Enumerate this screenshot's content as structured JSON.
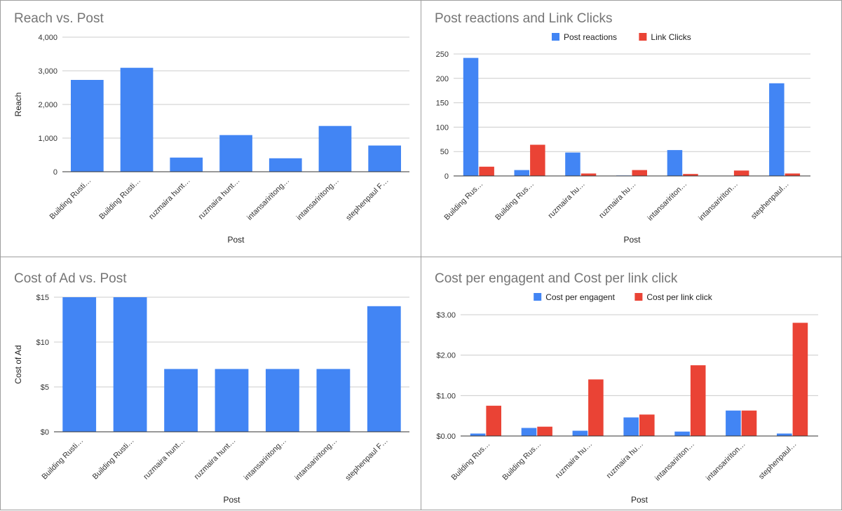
{
  "colors": {
    "blue": "#4285f4",
    "red": "#ea4335",
    "grid": "#cccccc",
    "baseline": "#333333"
  },
  "chart_data": [
    {
      "type": "bar",
      "title": "Reach vs. Post",
      "xlabel": "Post",
      "ylabel": "Reach",
      "ylim": [
        0,
        4000
      ],
      "yticks": [
        0,
        1000,
        2000,
        3000,
        4000
      ],
      "ytick_labels": [
        "0",
        "1,000",
        "2,000",
        "3,000",
        "4,000"
      ],
      "grid": true,
      "legend": "none",
      "categories": [
        "Building Rusti…",
        "Building Rusti…",
        "ruzmaira hunt…",
        "ruzmaira hunt…",
        "intansariritong…",
        "intansariritong…",
        "stephenpaul F…"
      ],
      "series": [
        {
          "values": [
            2730,
            3090,
            420,
            1090,
            400,
            1360,
            780
          ],
          "color": "#4285f4"
        }
      ]
    },
    {
      "type": "bar",
      "title": "Post reactions and Link Clicks",
      "xlabel": "Post",
      "ylabel": "",
      "ylim": [
        0,
        250
      ],
      "yticks": [
        0,
        50,
        100,
        150,
        200,
        250
      ],
      "ytick_labels": [
        "0",
        "50",
        "100",
        "150",
        "200",
        "250"
      ],
      "grid": true,
      "legend": "top",
      "categories": [
        "Building Rus…",
        "Building Rus…",
        "ruzmaira hu…",
        "ruzmaira hu…",
        "intansaririton…",
        "intansaririton…",
        "stephenpaul…"
      ],
      "series": [
        {
          "name": "Post reactions",
          "values": [
            242,
            12,
            48,
            1,
            53,
            0,
            190
          ],
          "color": "#4285f4"
        },
        {
          "name": "Link Clicks",
          "values": [
            19,
            64,
            5,
            12,
            4,
            11,
            5
          ],
          "color": "#ea4335"
        }
      ]
    },
    {
      "type": "bar",
      "title": "Cost of Ad vs. Post",
      "xlabel": "Post",
      "ylabel": "Cost of Ad",
      "ylim": [
        0,
        15
      ],
      "yticks": [
        0,
        5,
        10,
        15
      ],
      "ytick_labels": [
        "$0",
        "$5",
        "$10",
        "$15"
      ],
      "grid": true,
      "legend": "none",
      "categories": [
        "Building Rusti…",
        "Building Rusti…",
        "ruzmaira hunt…",
        "ruzmaira hunt…",
        "intansariritong…",
        "intansariritong…",
        "stephenpaul F…"
      ],
      "series": [
        {
          "values": [
            15,
            15,
            7,
            7,
            7,
            7,
            14
          ],
          "color": "#4285f4"
        }
      ]
    },
    {
      "type": "bar",
      "title": "Cost per engagent and Cost per link click",
      "xlabel": "Post",
      "ylabel": "",
      "ylim": [
        0,
        3
      ],
      "yticks": [
        0,
        1,
        2,
        3
      ],
      "ytick_labels": [
        "$0.00",
        "$1.00",
        "$2.00",
        "$3.00"
      ],
      "grid": true,
      "legend": "top",
      "categories": [
        "Building Rus…",
        "Building Rus…",
        "ruzmaira hu…",
        "ruzmaira hu…",
        "intansaririton…",
        "intansaririton…",
        "stephenpaul…"
      ],
      "series": [
        {
          "name": "Cost per engagent",
          "values": [
            0.06,
            0.2,
            0.13,
            0.46,
            0.11,
            0.63,
            0.06
          ],
          "color": "#4285f4"
        },
        {
          "name": "Cost per link click",
          "values": [
            0.75,
            0.23,
            1.4,
            0.53,
            1.75,
            0.63,
            2.8
          ],
          "color": "#ea4335"
        }
      ]
    }
  ]
}
